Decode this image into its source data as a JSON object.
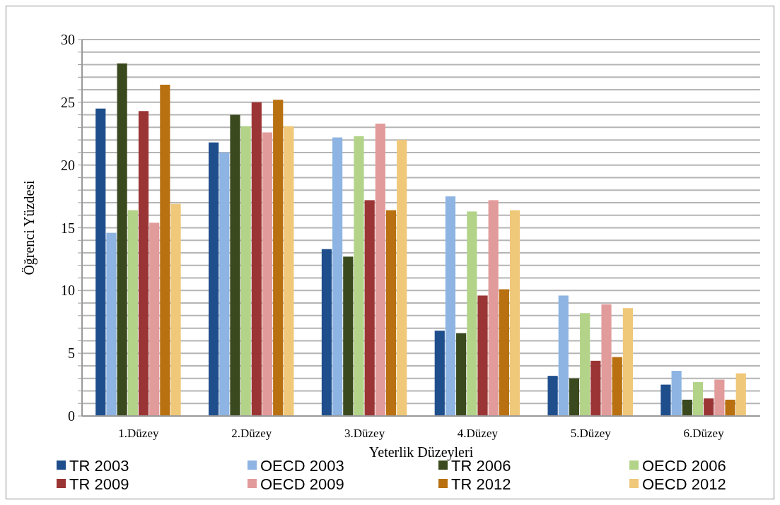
{
  "chart_data": {
    "type": "bar",
    "xlabel": "Yeterlik Düzeyleri",
    "ylabel": "Öğrenci Yüzdesi",
    "categories": [
      "1.Düzey",
      "2.Düzey",
      "3.Düzey",
      "4.Düzey",
      "5.Düzey",
      "6.Düzey"
    ],
    "series": [
      {
        "name": "TR 2003",
        "color": "#1f4e8c",
        "values": [
          24.5,
          21.8,
          13.3,
          6.8,
          3.2,
          2.5
        ]
      },
      {
        "name": "OECD 2003",
        "color": "#8db4e2",
        "values": [
          14.6,
          21.0,
          22.2,
          17.5,
          9.6,
          3.6
        ]
      },
      {
        "name": "TR 2006",
        "color": "#3b4a1e",
        "values": [
          28.1,
          24.0,
          12.7,
          6.6,
          3.0,
          1.3
        ]
      },
      {
        "name": "OECD 2006",
        "color": "#b3d389",
        "values": [
          16.4,
          23.1,
          22.3,
          16.3,
          8.2,
          2.7
        ]
      },
      {
        "name": "TR 2009",
        "color": "#9b3535",
        "values": [
          24.3,
          25.0,
          17.2,
          9.6,
          4.4,
          1.4
        ]
      },
      {
        "name": "OECD 2009",
        "color": "#e29b9b",
        "values": [
          15.4,
          22.6,
          23.3,
          17.2,
          8.9,
          2.9
        ]
      },
      {
        "name": "TR 2012",
        "color": "#b87010",
        "values": [
          26.4,
          25.2,
          16.4,
          10.1,
          4.7,
          1.3
        ]
      },
      {
        "name": "OECD 2012",
        "color": "#f0c87a",
        "values": [
          16.9,
          23.1,
          22.0,
          16.4,
          8.6,
          3.4
        ]
      }
    ],
    "ylim": [
      0,
      30
    ],
    "yticks": [
      0,
      {
        "value": 1,
        "label": null
      },
      {
        "value": 2,
        "label": null
      },
      {
        "value": 3,
        "label": null
      },
      {
        "value": 4,
        "label": null
      },
      5,
      {
        "value": 6,
        "label": null
      },
      {
        "value": 7,
        "label": null
      },
      {
        "value": 8,
        "label": null
      },
      {
        "value": 9,
        "label": null
      },
      10,
      {
        "value": 11,
        "label": null
      },
      {
        "value": 12,
        "label": null
      },
      {
        "value": 13,
        "label": null
      },
      {
        "value": 14,
        "label": null
      },
      15,
      {
        "value": 16,
        "label": null
      },
      {
        "value": 17,
        "label": null
      },
      {
        "value": 18,
        "label": null
      },
      {
        "value": 19,
        "label": null
      },
      20,
      {
        "value": 21,
        "label": null
      },
      {
        "value": 22,
        "label": null
      },
      {
        "value": 23,
        "label": null
      },
      {
        "value": 24,
        "label": null
      },
      25,
      {
        "value": 26,
        "label": null
      },
      {
        "value": 27,
        "label": null
      },
      {
        "value": 28,
        "label": null
      },
      {
        "value": 29,
        "label": null
      },
      30
    ],
    "grid": "y",
    "legend": "bottom"
  }
}
